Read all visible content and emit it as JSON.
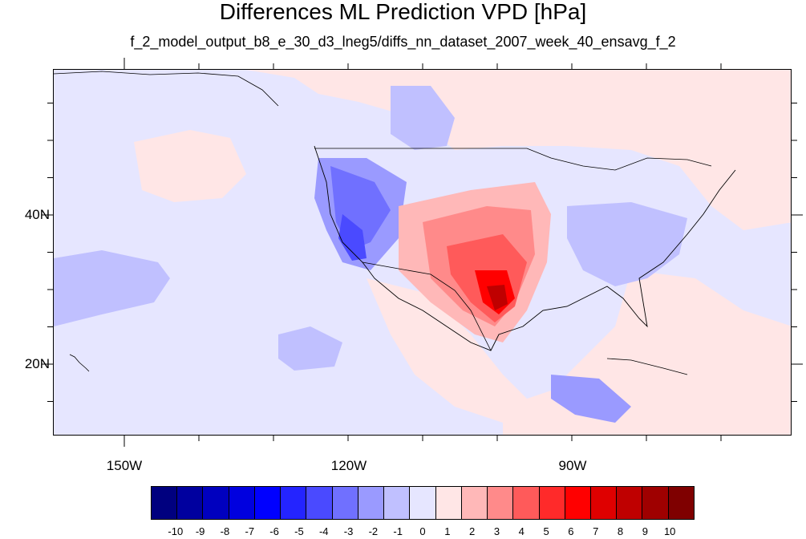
{
  "title": "Differences ML Prediction VPD [hPa]",
  "subtitle": "f_2_model_output_b8_e_30_d3_lneg5/diffs_nn_dataset_2007_week_40_ensavg_f_2",
  "lon_labels": [
    "150W",
    "120W",
    "90W"
  ],
  "lat_labels": [
    "40N",
    "20N"
  ],
  "colorbar": {
    "labels": [
      "-10",
      "-9",
      "-8",
      "-7",
      "-6",
      "-5",
      "-4",
      "-3",
      "-2",
      "-1",
      "0",
      "1",
      "2",
      "3",
      "4",
      "5",
      "6",
      "7",
      "8",
      "9",
      "10"
    ],
    "colors": [
      "#00007f",
      "#00009f",
      "#0000bf",
      "#0000df",
      "#0000ff",
      "#2424ff",
      "#4a4aff",
      "#7070ff",
      "#9a9aff",
      "#c0c0ff",
      "#e6e6ff",
      "#ffe6e6",
      "#ffb8b8",
      "#ff8a8a",
      "#ff5a5a",
      "#ff2a2a",
      "#ff0000",
      "#df0000",
      "#bf0000",
      "#9f0000",
      "#7f0000"
    ]
  },
  "colors": {
    "ocean_background": "#e6e6ff",
    "slight_positive": "#ffe6e6",
    "slight_negative": "#c0c0ff",
    "strong_positive": "#ff2a2a",
    "strong_negative": "#4a4aff",
    "coastline": "#000000"
  }
}
